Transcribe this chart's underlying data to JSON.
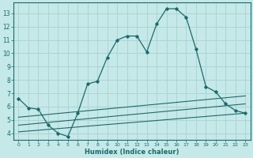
{
  "xlabel": "Humidex (Indice chaleur)",
  "bg_color": "#c5e8e8",
  "grid_color": "#aed4d4",
  "line_color": "#1a6b6b",
  "xlim": [
    -0.5,
    23.5
  ],
  "ylim": [
    3.5,
    13.8
  ],
  "xticks": [
    0,
    1,
    2,
    3,
    4,
    5,
    6,
    7,
    8,
    9,
    10,
    11,
    12,
    13,
    14,
    15,
    16,
    17,
    18,
    19,
    20,
    21,
    22,
    23
  ],
  "yticks": [
    4,
    5,
    6,
    7,
    8,
    9,
    10,
    11,
    12,
    13
  ],
  "line1_x": [
    0,
    1,
    2,
    3,
    4,
    5,
    6,
    7,
    8,
    9,
    10,
    11,
    12,
    13,
    14,
    15,
    16,
    17,
    18,
    19,
    20,
    21,
    22,
    23
  ],
  "line1_y": [
    6.6,
    5.9,
    5.8,
    4.6,
    4.0,
    3.75,
    5.5,
    7.7,
    7.9,
    9.7,
    11.0,
    11.3,
    11.3,
    10.1,
    12.2,
    13.35,
    13.35,
    12.7,
    10.3,
    7.5,
    7.1,
    6.2,
    5.7,
    5.5
  ],
  "line2_x": [
    0,
    23
  ],
  "line2_y": [
    4.1,
    5.5
  ],
  "line3_x": [
    0,
    23
  ],
  "line3_y": [
    4.6,
    6.2
  ],
  "line4_x": [
    0,
    23
  ],
  "line4_y": [
    5.2,
    6.8
  ]
}
